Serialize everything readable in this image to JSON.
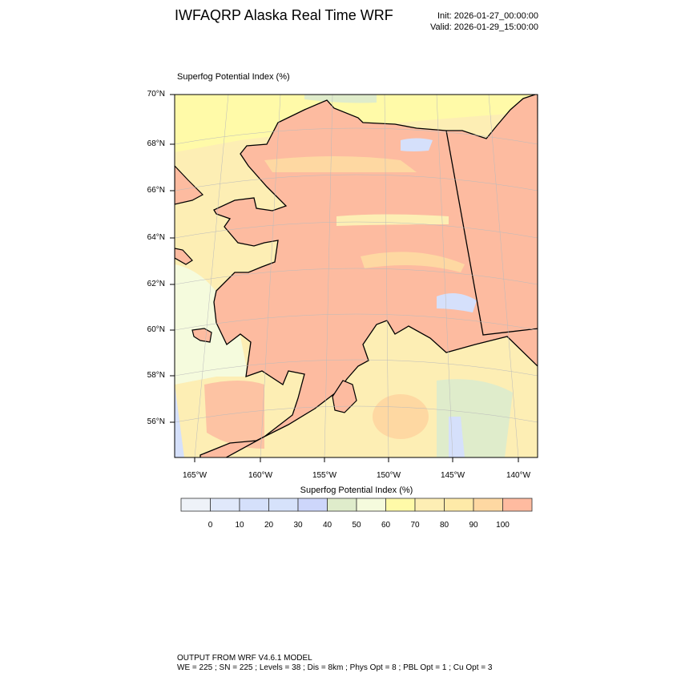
{
  "header": {
    "title": "IWFAQRP Alaska Real Time WRF",
    "init": "Init: 2026-01-27_00:00:00",
    "valid": "Valid: 2026-01-29_15:00:00"
  },
  "map": {
    "subtitle": "Superfog Potential Index   (%)",
    "lat_labels": [
      "70°N",
      "68°N",
      "66°N",
      "64°N",
      "62°N",
      "60°N",
      "58°N",
      "56°N"
    ],
    "lon_labels": [
      "165°W",
      "160°W",
      "155°W",
      "150°W",
      "145°W",
      "140°W"
    ],
    "colors": {
      "land_high": "#fdbba0",
      "sea": "#fdeeb4",
      "sea_light": "#fffaa8",
      "low": "#d5e0fb",
      "mid": "#dfeccb"
    }
  },
  "colorbar": {
    "title": "Superfog Potential Index  (%)",
    "labels": [
      "0",
      "10",
      "20",
      "30",
      "40",
      "50",
      "60",
      "70",
      "80",
      "90",
      "100"
    ],
    "colors": [
      "#eef2f8",
      "#e0e8fb",
      "#d5e0fb",
      "#d6e2fb",
      "#cdd6fb",
      "#dfeccb",
      "#f5fbdd",
      "#fffaa8",
      "#fdeeb4",
      "#feeaa8",
      "#fed8a2",
      "#ffbba0"
    ]
  },
  "footer": {
    "line1": "OUTPUT FROM WRF V4.6.1 MODEL",
    "line2": "WE = 225 ; SN = 225 ; Levels = 38 ; Dis = 8km ; Phys Opt = 8 ; PBL Opt = 1 ; Cu Opt = 3"
  }
}
